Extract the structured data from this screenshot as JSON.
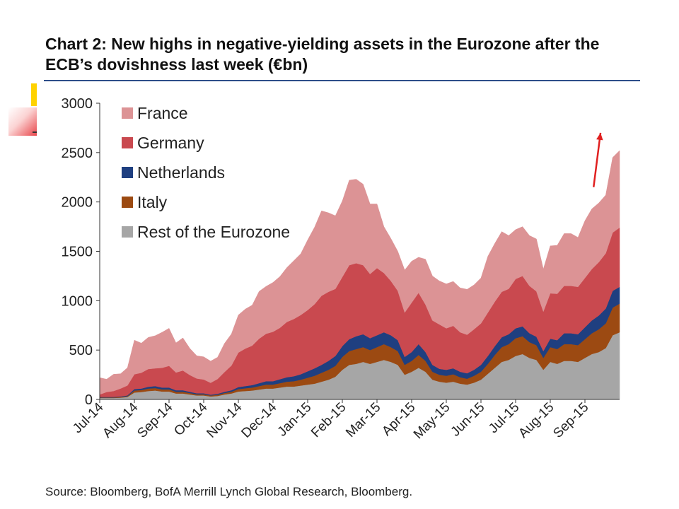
{
  "title": "Chart 2: New highs in negative-yielding assets in the Eurozone after the ECB’s dovishness last week (€bn)",
  "source": "Source: Bloomberg, BofA Merrill Lynch Global Research, Bloomberg.",
  "chart_data": {
    "type": "area",
    "stacked": true,
    "ylim": [
      0,
      3000
    ],
    "yticks": [
      0,
      500,
      1000,
      1500,
      2000,
      2500,
      3000
    ],
    "xlim": [
      0,
      15
    ],
    "xtick_labels": [
      "Jul-14",
      "Aug-14",
      "Sep-14",
      "Oct-14",
      "Nov-14",
      "Dec-14",
      "Jan-15",
      "Feb-15",
      "Mar-15",
      "Apr-15",
      "May-15",
      "Jun-15",
      "Jul-15",
      "Aug-15",
      "Sep-15"
    ],
    "legend_position": "top-left",
    "grid": false,
    "x": [
      0,
      0.2,
      0.4,
      0.6,
      0.8,
      1,
      1.2,
      1.4,
      1.6,
      1.8,
      2,
      2.2,
      2.4,
      2.6,
      2.8,
      3,
      3.2,
      3.4,
      3.6,
      3.8,
      4,
      4.2,
      4.4,
      4.6,
      4.8,
      5,
      5.2,
      5.4,
      5.6,
      5.8,
      6,
      6.2,
      6.4,
      6.6,
      6.8,
      7,
      7.2,
      7.4,
      7.6,
      7.8,
      8,
      8.2,
      8.4,
      8.6,
      8.8,
      9,
      9.2,
      9.4,
      9.6,
      9.8,
      10,
      10.2,
      10.4,
      10.6,
      10.8,
      11,
      11.2,
      11.4,
      11.6,
      11.8,
      12,
      12.2,
      12.4,
      12.6,
      12.8,
      13,
      13.2,
      13.4,
      13.6,
      13.8,
      14,
      14.2,
      14.4,
      14.6,
      14.8,
      15
    ],
    "series": [
      {
        "name": "Rest of the Eurozone",
        "color": "#a6a6a6",
        "values": [
          15,
          15,
          15,
          18,
          25,
          70,
          75,
          85,
          90,
          80,
          80,
          60,
          60,
          50,
          40,
          40,
          30,
          35,
          50,
          60,
          80,
          85,
          90,
          100,
          110,
          110,
          120,
          130,
          130,
          140,
          150,
          160,
          180,
          200,
          230,
          300,
          350,
          360,
          380,
          360,
          380,
          400,
          380,
          350,
          250,
          280,
          320,
          280,
          200,
          180,
          170,
          180,
          160,
          150,
          170,
          200,
          260,
          320,
          380,
          400,
          440,
          460,
          420,
          400,
          300,
          380,
          360,
          390,
          390,
          380,
          420,
          460,
          480,
          520,
          650,
          680
        ]
      },
      {
        "name": "Italy",
        "color": "#9c4a12",
        "values": [
          5,
          5,
          5,
          6,
          8,
          20,
          20,
          25,
          25,
          22,
          22,
          18,
          18,
          15,
          12,
          12,
          10,
          12,
          15,
          18,
          25,
          28,
          30,
          35,
          40,
          40,
          45,
          50,
          55,
          60,
          70,
          80,
          90,
          100,
          110,
          130,
          140,
          150,
          150,
          140,
          150,
          160,
          150,
          140,
          100,
          110,
          130,
          110,
          80,
          70,
          70,
          75,
          65,
          60,
          70,
          80,
          100,
          130,
          150,
          160,
          180,
          180,
          160,
          150,
          120,
          150,
          150,
          170,
          170,
          170,
          190,
          210,
          230,
          250,
          280,
          290
        ]
      },
      {
        "name": "Netherlands",
        "color": "#1f3f80",
        "values": [
          5,
          5,
          5,
          6,
          8,
          15,
          15,
          18,
          20,
          18,
          18,
          15,
          15,
          12,
          10,
          10,
          8,
          10,
          12,
          15,
          20,
          22,
          25,
          30,
          35,
          35,
          40,
          45,
          50,
          55,
          65,
          75,
          80,
          90,
          100,
          110,
          120,
          130,
          130,
          120,
          120,
          120,
          120,
          110,
          80,
          90,
          110,
          90,
          70,
          60,
          60,
          60,
          55,
          55,
          60,
          70,
          80,
          90,
          100,
          100,
          100,
          100,
          90,
          85,
          70,
          85,
          90,
          110,
          110,
          110,
          120,
          130,
          140,
          150,
          170,
          170
        ]
      },
      {
        "name": "Germany",
        "color": "#c9494f",
        "values": [
          25,
          50,
          60,
          80,
          100,
          150,
          160,
          180,
          180,
          200,
          220,
          180,
          200,
          170,
          150,
          140,
          120,
          150,
          200,
          250,
          350,
          380,
          400,
          450,
          480,
          500,
          520,
          560,
          580,
          600,
          620,
          650,
          700,
          700,
          680,
          700,
          750,
          740,
          700,
          650,
          680,
          600,
          550,
          500,
          450,
          500,
          520,
          480,
          450,
          450,
          420,
          430,
          400,
          390,
          410,
          420,
          440,
          450,
          460,
          460,
          500,
          510,
          480,
          460,
          400,
          460,
          470,
          480,
          480,
          480,
          500,
          520,
          540,
          560,
          590,
          600
        ]
      },
      {
        "name": "France",
        "color": "#dc9395",
        "values": [
          170,
          130,
          170,
          150,
          180,
          345,
          300,
          320,
          330,
          360,
          380,
          300,
          330,
          270,
          230,
          230,
          220,
          220,
          290,
          320,
          380,
          400,
          410,
          480,
          480,
          500,
          520,
          550,
          590,
          620,
          710,
          780,
          860,
          800,
          740,
          770,
          860,
          850,
          820,
          710,
          650,
          470,
          430,
          400,
          430,
          420,
          360,
          460,
          450,
          440,
          450,
          450,
          450,
          460,
          450,
          460,
          570,
          590,
          610,
          540,
          500,
          500,
          510,
          530,
          430,
          480,
          490,
          530,
          530,
          500,
          580,
          610,
          600,
          590,
          760,
          780
        ]
      }
    ],
    "annotations": [
      {
        "type": "arrow",
        "color": "#e02020",
        "x_from": 14.25,
        "y_from": 2150,
        "x_to": 14.45,
        "y_to": 2700
      }
    ]
  }
}
